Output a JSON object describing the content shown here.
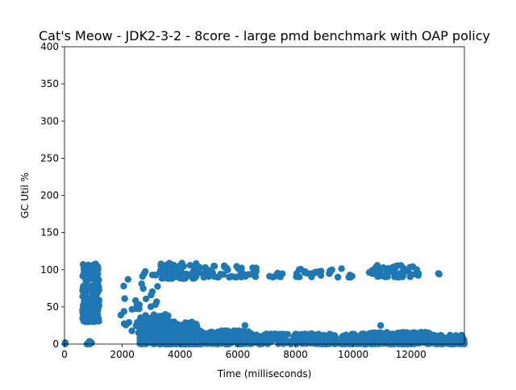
{
  "chart_data": {
    "type": "scatter",
    "title": "Cat's Meow - JDK2-3-2 - 8core -  large pmd benchmark with OAP policy",
    "xlabel": "Time (milliseconds)",
    "ylabel": "GC Util %",
    "xlim": [
      0,
      13850
    ],
    "ylim": [
      0,
      400
    ],
    "x_ticks": [
      0,
      2000,
      4000,
      6000,
      8000,
      10000,
      12000
    ],
    "y_ticks": [
      0,
      50,
      100,
      150,
      200,
      250,
      300,
      350,
      400
    ],
    "grid": false,
    "legend": "none",
    "marker_color": "#1f77b4",
    "series": [
      {
        "clusters": [
          {
            "x": [
              0,
              40
            ],
            "y": [
              0,
              2
            ],
            "n": 3
          },
          {
            "x": [
              620,
              1200
            ],
            "y": [
              30,
              108
            ],
            "n": 230
          },
          {
            "x": [
              650,
              950
            ],
            "y": [
              0,
              4
            ],
            "n": 8
          },
          {
            "x": [
              1950,
              2250
            ],
            "y": [
              25,
              80
            ],
            "n": 6
          },
          {
            "x": [
              2300,
              2800
            ],
            "y": [
              15,
              60
            ],
            "n": 14
          },
          {
            "x": [
              2600,
              3300
            ],
            "y": [
              50,
              105
            ],
            "n": 14
          },
          {
            "x": [
              2600,
              3600
            ],
            "y": [
              0,
              40
            ],
            "n": 230
          },
          {
            "x": [
              3300,
              4600
            ],
            "y": [
              88,
              110
            ],
            "n": 85
          },
          {
            "x": [
              3500,
              4600
            ],
            "y": [
              0,
              30
            ],
            "n": 230
          },
          {
            "x": [
              4600,
              6700
            ],
            "y": [
              90,
              106
            ],
            "n": 45
          },
          {
            "x": [
              4600,
              6500
            ],
            "y": [
              0,
              18
            ],
            "n": 230
          },
          {
            "x": [
              6500,
              7600
            ],
            "y": [
              90,
              96
            ],
            "n": 10
          },
          {
            "x": [
              6500,
              10500
            ],
            "y": [
              0,
              14
            ],
            "n": 300
          },
          {
            "x": [
              8000,
              10000
            ],
            "y": [
              90,
              106
            ],
            "n": 28
          },
          {
            "x": [
              10500,
              12300
            ],
            "y": [
              90,
              106
            ],
            "n": 50
          },
          {
            "x": [
              10500,
              12800
            ],
            "y": [
              0,
              16
            ],
            "n": 240
          },
          {
            "x": [
              12800,
              13850
            ],
            "y": [
              0,
              12
            ],
            "n": 90
          }
        ],
        "extra_points": [
          [
            6250,
            25
          ],
          [
            10950,
            25
          ],
          [
            12950,
            95
          ],
          [
            12980,
            94
          ],
          [
            2050,
            78
          ],
          [
            2200,
            87
          ]
        ]
      }
    ]
  }
}
